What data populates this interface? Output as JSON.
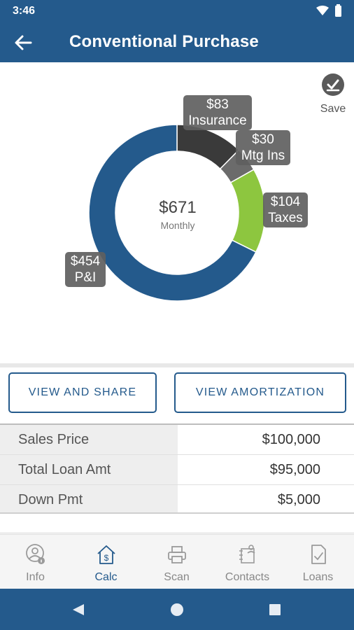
{
  "status_bar": {
    "time": "3:46"
  },
  "app_bar": {
    "title": "Conventional Purchase"
  },
  "save": {
    "label": "Save"
  },
  "chart_data": {
    "type": "pie",
    "center_value": "$671",
    "center_label": "Monthly",
    "slices": [
      {
        "label": "P&I",
        "amount": "$454",
        "value": 454,
        "color": "#245a8c"
      },
      {
        "label": "Insurance",
        "amount": "$83",
        "value": 83,
        "color": "#3a3a3a"
      },
      {
        "label": "Mtg Ins",
        "amount": "$30",
        "value": 30,
        "color": "#6b6b6b"
      },
      {
        "label": "Taxes",
        "amount": "$104",
        "value": 104,
        "color": "#8dc63f"
      }
    ]
  },
  "actions": {
    "view_share": "VIEW AND SHARE",
    "view_amortization": "VIEW AMORTIZATION"
  },
  "summary": [
    {
      "label": "Sales Price",
      "value": "$100,000"
    },
    {
      "label": "Total Loan Amt",
      "value": "$95,000"
    },
    {
      "label": "Down Pmt",
      "value": "$5,000"
    }
  ],
  "nav": [
    {
      "label": "Info",
      "icon": "info-person-icon"
    },
    {
      "label": "Calc",
      "icon": "calc-house-icon"
    },
    {
      "label": "Scan",
      "icon": "scan-printer-icon"
    },
    {
      "label": "Contacts",
      "icon": "contacts-icon"
    },
    {
      "label": "Loans",
      "icon": "loans-document-icon"
    }
  ],
  "colors": {
    "primary": "#245a8c",
    "taxes_green": "#8dc63f"
  }
}
